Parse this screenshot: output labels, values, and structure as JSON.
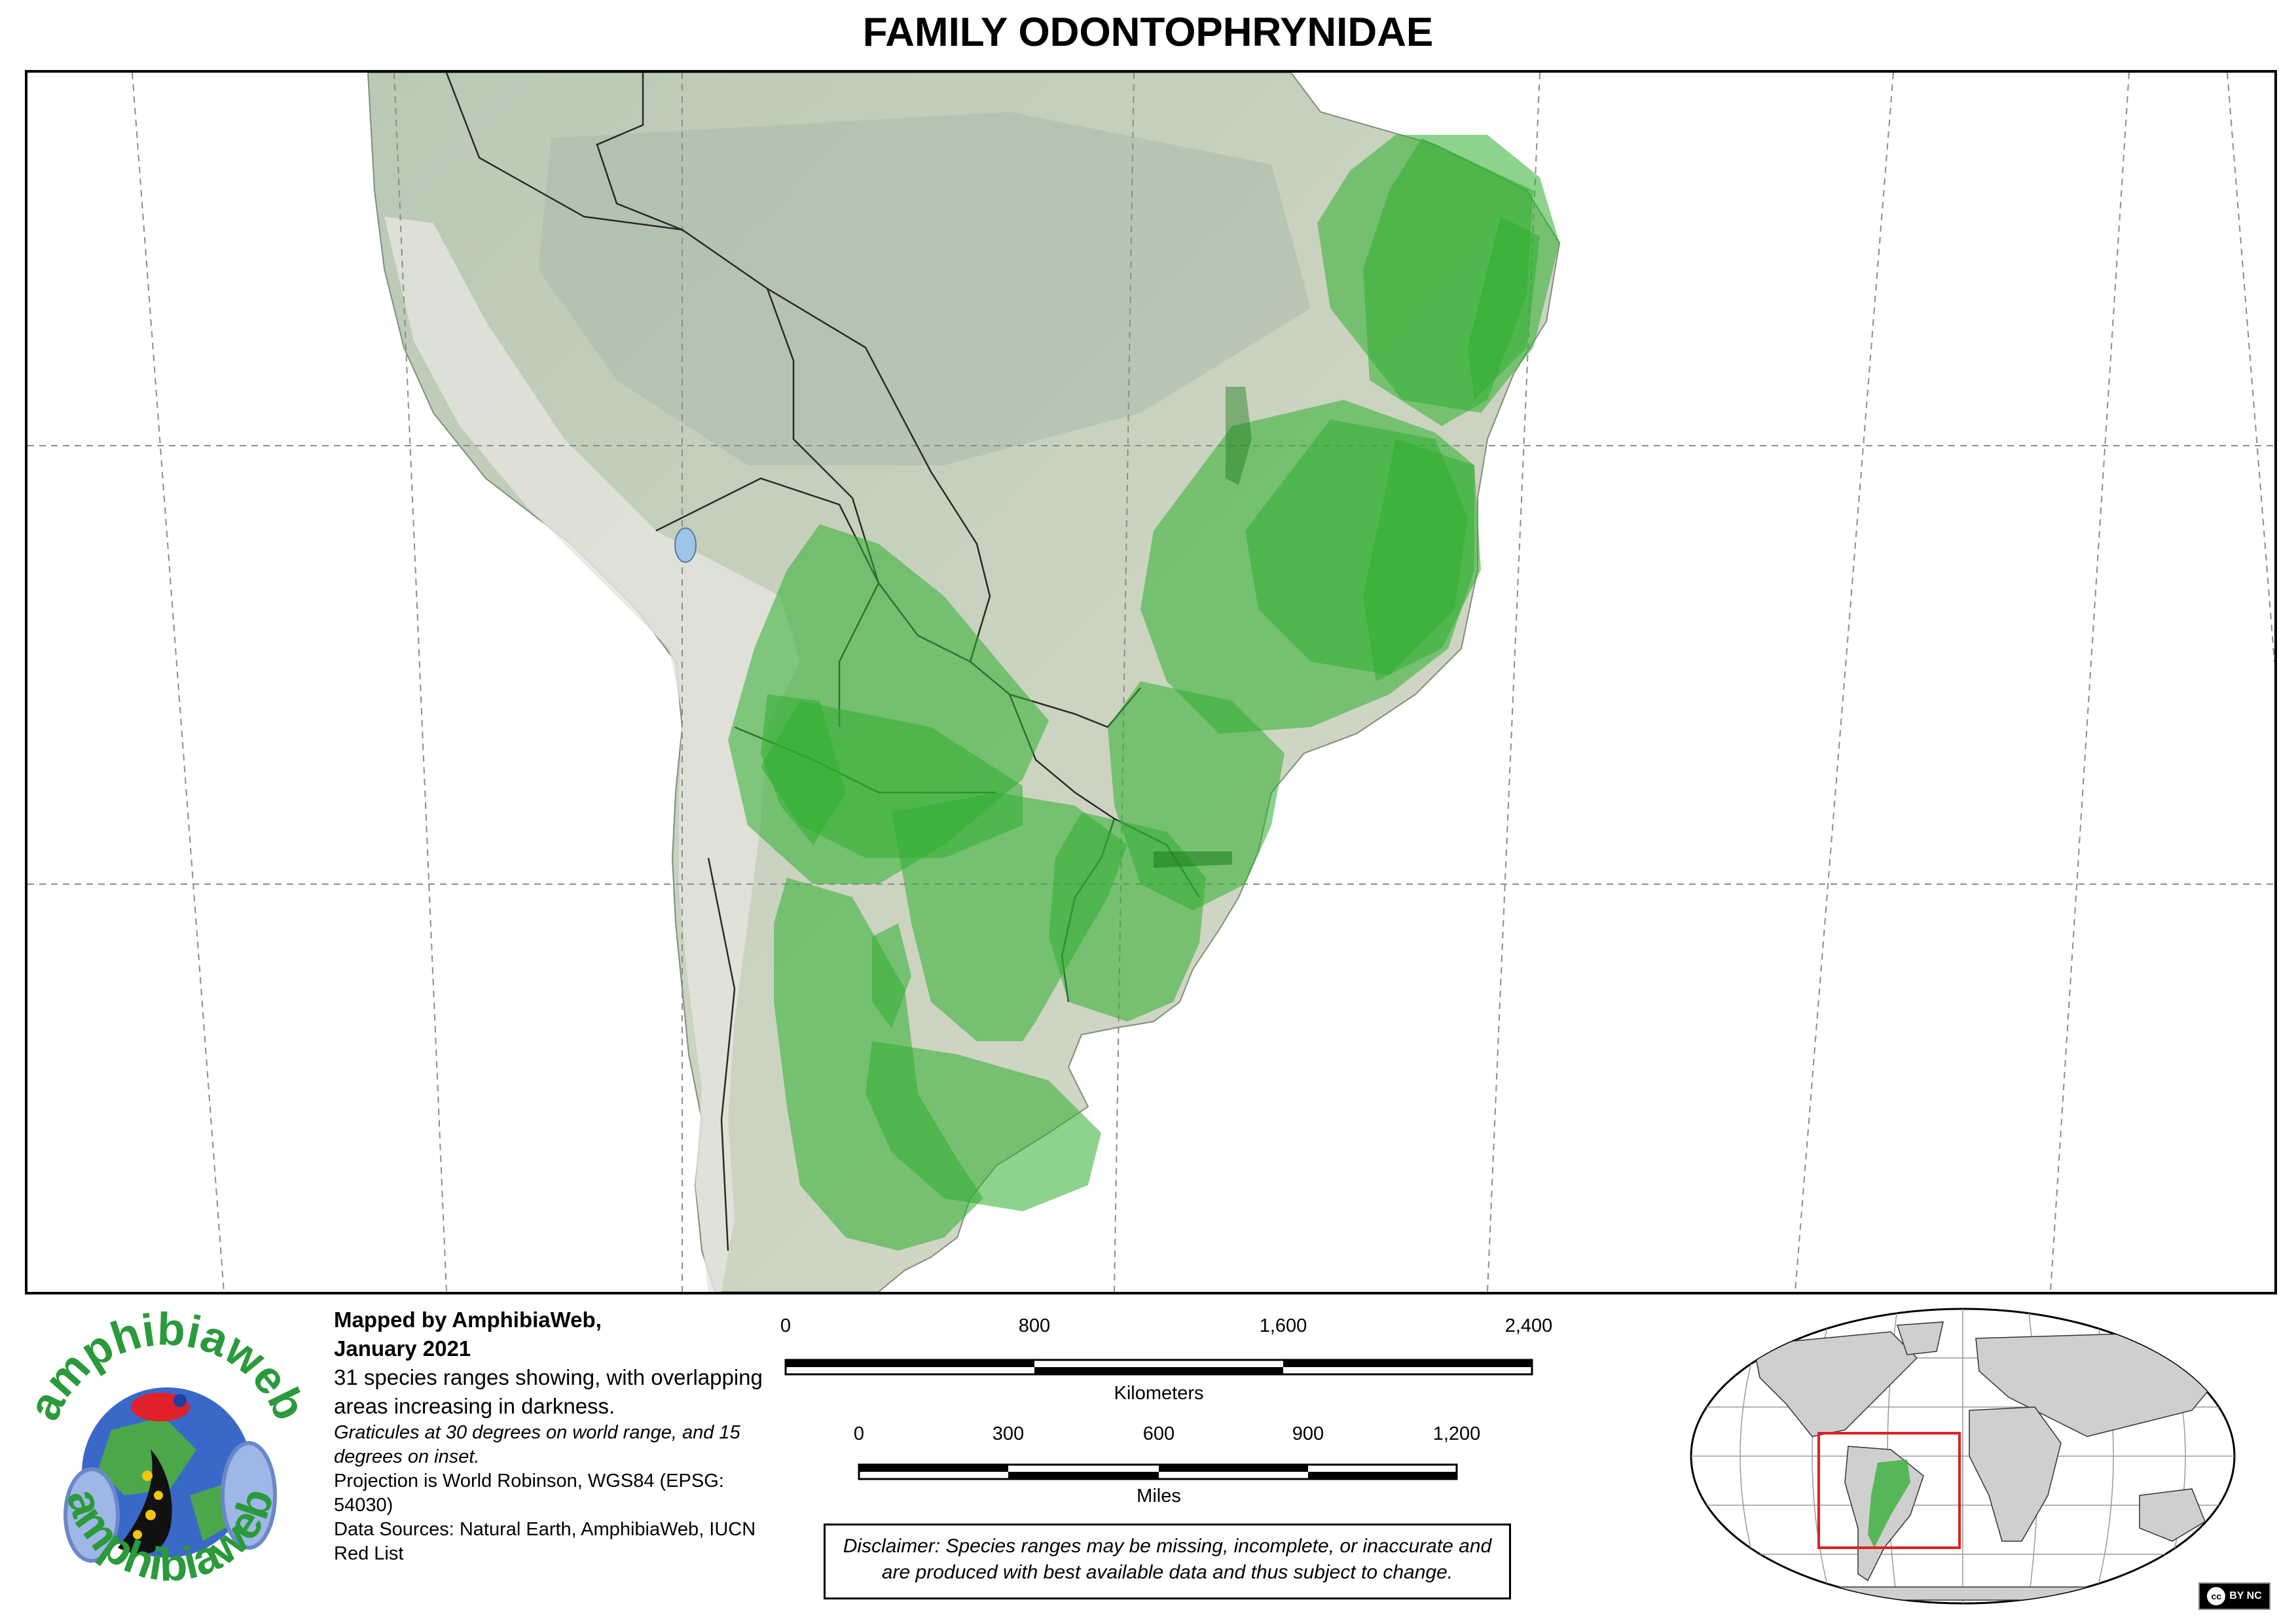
{
  "title": "FAMILY ODONTOPHRYNIDAE",
  "colors": {
    "land": "#c9d3c3",
    "ocean": "#ffffff",
    "range_fill": "#2fae2f",
    "range_dark": "#1c7a1c",
    "graticule": "#9a9a9a",
    "inset_land": "#cfcfcf",
    "inset_box": "#e02020"
  },
  "credits": {
    "mapped_by": "Mapped by AmphibiaWeb,",
    "date": "January 2021",
    "summary": "31 species ranges showing, with overlapping areas increasing in darkness.",
    "graticule_note": "Graticules at 30 degrees on world range, and 15 degrees on inset.",
    "projection": "Projection is World Robinson, WGS84 (EPSG: 54030)",
    "sources": "Data Sources: Natural Earth, AmphibiaWeb, IUCN Red List"
  },
  "scale": {
    "km_ticks": [
      "0",
      "800",
      "1,600",
      "2,400"
    ],
    "km_label": "Kilometers",
    "mi_ticks": [
      "0",
      "300",
      "600",
      "900",
      "1,200"
    ],
    "mi_label": "Miles"
  },
  "disclaimer": "Disclaimer: Species ranges may be missing, incomplete, or inaccurate and are produced with best available data and thus subject to change.",
  "logo": {
    "text_top": "amphibiaweb",
    "text_bottom": "amphibiaweb"
  },
  "license": {
    "badge": "cc",
    "terms": "BY NC"
  }
}
